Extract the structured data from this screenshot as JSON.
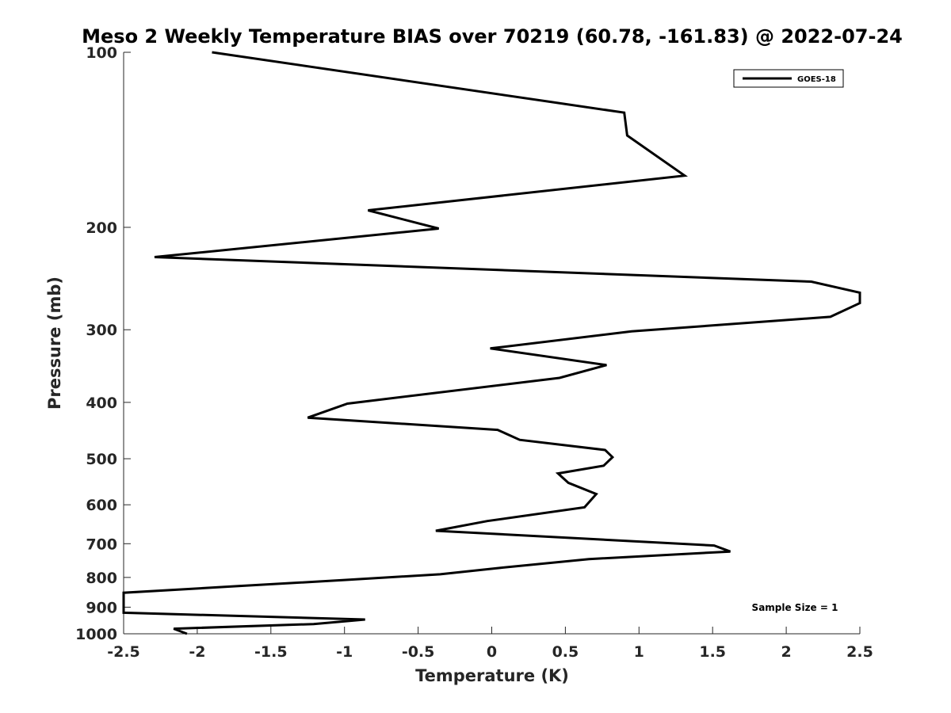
{
  "chart_data": {
    "type": "line",
    "title": "Meso 2 Weekly Temperature BIAS over 70219 (60.78, -161.83) @ 2022-07-24",
    "xlabel": "Temperature (K)",
    "ylabel": "Pressure (mb)",
    "xlim": [
      -2.5,
      2.5
    ],
    "ylim": [
      100,
      1000
    ],
    "y_scale": "log",
    "y_reversed": true,
    "x_ticks": [
      "-2.5",
      "-2",
      "-1.5",
      "-1",
      "-0.5",
      "0",
      "0.5",
      "1",
      "1.5",
      "2",
      "2.5"
    ],
    "y_ticks": [
      "100",
      "200",
      "300",
      "400",
      "500",
      "600",
      "700",
      "800",
      "900",
      "1000"
    ],
    "grid": false,
    "legend_position": "top-right",
    "series": [
      {
        "name": "GOES-18",
        "color": "#000000",
        "x": [
          -1.9,
          0.9,
          0.92,
          1.31,
          -0.84,
          -0.36,
          -2.29,
          2.17,
          2.5,
          2.5,
          2.3,
          0.95,
          -0.01,
          0.78,
          0.46,
          -0.98,
          -1.25,
          0.04,
          0.19,
          0.77,
          0.82,
          0.76,
          0.45,
          0.52,
          0.71,
          0.63,
          -0.03,
          -0.38,
          1.51,
          1.62,
          0.66,
          0.06,
          -0.35,
          -0.99,
          -1.72,
          -2.5,
          -2.5,
          -0.86,
          -1.21,
          -2.16,
          -2.07
        ],
        "y": [
          100,
          127,
          139,
          163,
          187,
          201,
          225,
          248,
          259,
          270,
          285,
          302,
          323,
          345,
          363,
          402,
          425,
          446,
          464,
          483,
          497,
          514,
          530,
          550,
          575,
          606,
          640,
          665,
          705,
          722,
          744,
          770,
          790,
          808,
          828,
          850,
          920,
          945,
          962,
          980,
          1000
        ]
      }
    ],
    "annotations": [
      {
        "text": "Sample Size = 1",
        "position": "bottom-right"
      }
    ]
  }
}
